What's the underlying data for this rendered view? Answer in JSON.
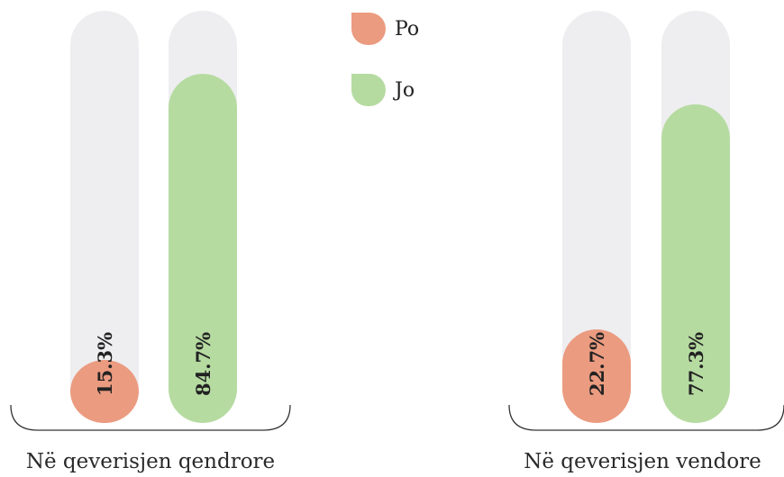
{
  "colors": {
    "po": "#eb9b80",
    "jo": "#b6dba1",
    "track": "#eeeef0",
    "label": "#222222"
  },
  "legend": [
    {
      "label": "Po",
      "color": "#eb9b80"
    },
    {
      "label": "Jo",
      "color": "#b6dba1"
    }
  ],
  "chart_data": {
    "type": "bar",
    "categories": [
      "Në qeverisjen qendrore",
      "Në qeverisjen vendore"
    ],
    "series": [
      {
        "name": "Po",
        "values": [
          15.3,
          22.7
        ],
        "labels": [
          "15.3%",
          "22.7%"
        ]
      },
      {
        "name": "Jo",
        "values": [
          84.7,
          77.3
        ],
        "labels": [
          "84.7%",
          "77.3%"
        ]
      }
    ],
    "ylim": [
      0,
      100
    ],
    "unit": "%"
  }
}
